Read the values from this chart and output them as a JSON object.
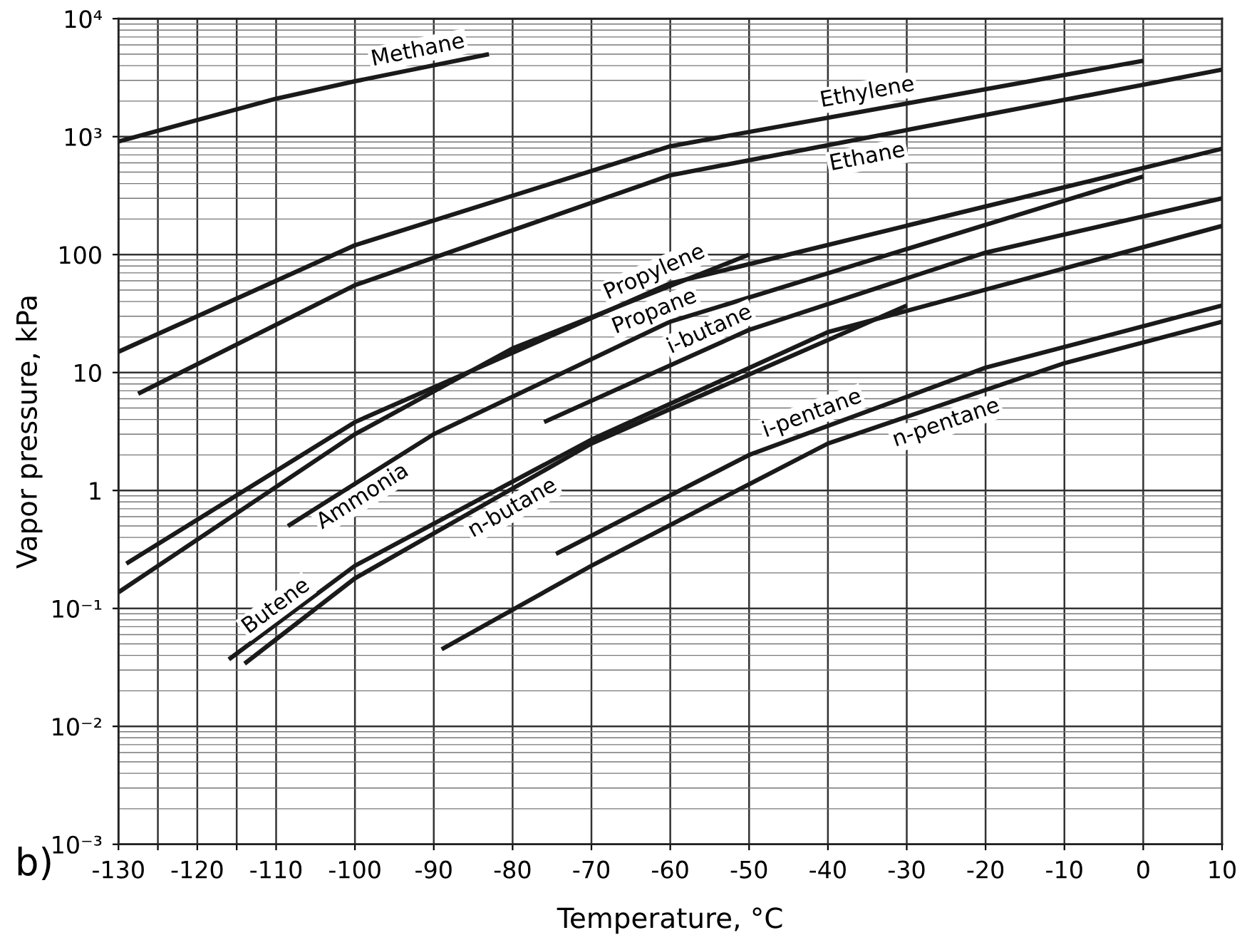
{
  "chart_data": {
    "type": "line",
    "xlabel": "Temperature, °C",
    "ylabel": "Vapor pressure, kPa",
    "annotations": [
      "b)"
    ],
    "log": "y",
    "grid": true,
    "marker": "none",
    "line_style": "solid",
    "xlim": [
      -130,
      10
    ],
    "ylim": [
      0.001,
      10000
    ],
    "xticks": [
      -130,
      {
        "value": -125,
        "label": null
      },
      -120,
      {
        "value": -115,
        "label": null
      },
      -110,
      -100,
      -90,
      -80,
      -70,
      -60,
      -50,
      -40,
      -30,
      -20,
      -10,
      0,
      10
    ],
    "yticks": [
      {
        "value": 0.001,
        "label": "10⁻³"
      },
      {
        "value": 0.01,
        "label": "10⁻²"
      },
      {
        "value": 0.1,
        "label": "10⁻¹"
      },
      1,
      10,
      100,
      {
        "value": 1000,
        "label": "10³"
      },
      {
        "value": 10000,
        "label": "10⁴"
      }
    ],
    "series": [
      {
        "name": "Methane",
        "color": "#1a1a1a",
        "x": [
          -130,
          -110,
          -100,
          -83
        ],
        "values": [
          910,
          2100,
          2950,
          5000
        ]
      },
      {
        "name": "Ethylene",
        "color": "#1a1a1a",
        "x": [
          -130,
          -100,
          -60,
          0
        ],
        "values": [
          15,
          120,
          830,
          4400
        ]
      },
      {
        "name": "Ethane",
        "color": "#1a1a1a",
        "x": [
          -127.5,
          -100,
          -60,
          10
        ],
        "values": [
          6.6,
          55,
          470,
          3700
        ]
      },
      {
        "name": "Propylene",
        "color": "#1a1a1a",
        "x": [
          -129,
          -100,
          -60,
          10
        ],
        "values": [
          0.24,
          3.8,
          57,
          790
        ]
      },
      {
        "name": "Propane",
        "color": "#1a1a1a",
        "x": [
          -130,
          -100,
          -80,
          -50
        ],
        "values": [
          0.137,
          3.0,
          16,
          100
        ]
      },
      {
        "name": "Ammonia",
        "color": "#1a1a1a",
        "x": [
          -108.5,
          -90,
          -60,
          0
        ],
        "values": [
          0.5,
          3.0,
          27,
          460
        ]
      },
      {
        "name": "i-butane",
        "color": "#1a1a1a",
        "x": [
          -76,
          -50,
          -20,
          10
        ],
        "values": [
          3.8,
          23,
          104,
          300
        ]
      },
      {
        "name": "Butene",
        "color": "#1a1a1a",
        "x": [
          -116,
          -100,
          -70,
          -40,
          10
        ],
        "values": [
          0.037,
          0.23,
          2.7,
          22,
          175
        ]
      },
      {
        "name": "n-butane",
        "color": "#1a1a1a",
        "x": [
          -114,
          -100,
          -70,
          -30
        ],
        "values": [
          0.034,
          0.18,
          2.5,
          37
        ]
      },
      {
        "name": "i-pentane",
        "color": "#1a1a1a",
        "x": [
          -74.5,
          -50,
          -20,
          10
        ],
        "values": [
          0.29,
          2.0,
          11,
          37
        ]
      },
      {
        "name": "n-pentane",
        "color": "#1a1a1a",
        "x": [
          -89,
          -70,
          -40,
          -10,
          10
        ],
        "values": [
          0.045,
          0.23,
          2.5,
          12,
          27
        ]
      }
    ]
  }
}
